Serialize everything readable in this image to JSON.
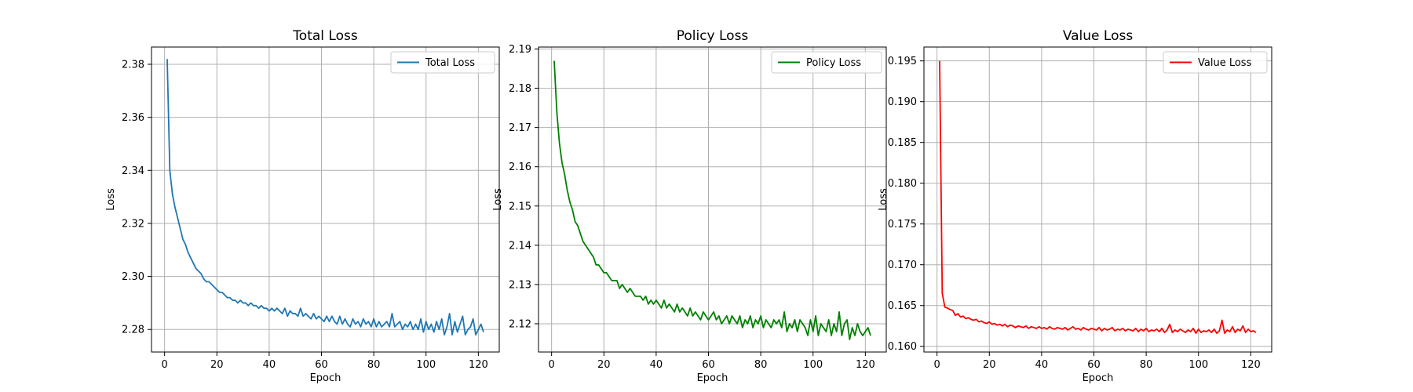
{
  "chart_data": [
    {
      "type": "line",
      "title": "Total Loss",
      "xlabel": "Epoch",
      "ylabel": "Loss",
      "xlim": [
        -5,
        128
      ],
      "ylim": [
        2.2715,
        2.3865
      ],
      "xticks": [
        0,
        20,
        40,
        60,
        80,
        100,
        120
      ],
      "yticks": [
        2.28,
        2.3,
        2.32,
        2.34,
        2.36,
        2.38
      ],
      "ytick_labels": [
        "2.28",
        "2.30",
        "2.32",
        "2.34",
        "2.36",
        "2.38"
      ],
      "grid": true,
      "legend_position": "top-right",
      "color": "#1f77b4",
      "series": [
        {
          "name": "Total Loss",
          "x_start": 1,
          "values": [
            2.382,
            2.34,
            2.331,
            2.326,
            2.322,
            2.318,
            2.314,
            2.312,
            2.309,
            2.307,
            2.305,
            2.303,
            2.302,
            2.301,
            2.299,
            2.298,
            2.298,
            2.297,
            2.296,
            2.295,
            2.294,
            2.294,
            2.293,
            2.292,
            2.292,
            2.291,
            2.291,
            2.29,
            2.291,
            2.29,
            2.29,
            2.289,
            2.29,
            2.289,
            2.289,
            2.288,
            2.289,
            2.288,
            2.288,
            2.287,
            2.288,
            2.287,
            2.288,
            2.287,
            2.286,
            2.288,
            2.285,
            2.287,
            2.286,
            2.286,
            2.285,
            2.288,
            2.285,
            2.286,
            2.285,
            2.284,
            2.286,
            2.284,
            2.285,
            2.284,
            2.283,
            2.285,
            2.283,
            2.285,
            2.283,
            2.282,
            2.285,
            2.282,
            2.284,
            2.282,
            2.281,
            2.284,
            2.282,
            2.283,
            2.281,
            2.284,
            2.282,
            2.283,
            2.281,
            2.284,
            2.281,
            2.283,
            2.281,
            2.282,
            2.283,
            2.281,
            2.286,
            2.281,
            2.282,
            2.283,
            2.28,
            2.282,
            2.281,
            2.283,
            2.28,
            2.282,
            2.28,
            2.284,
            2.279,
            2.283,
            2.28,
            2.282,
            2.279,
            2.283,
            2.28,
            2.284,
            2.278,
            2.281,
            2.286,
            2.278,
            2.283,
            2.279,
            2.282,
            2.285,
            2.278,
            2.28,
            2.281,
            2.284,
            2.278,
            2.28,
            2.282,
            2.279
          ]
        }
      ]
    },
    {
      "type": "line",
      "title": "Policy Loss",
      "xlabel": "Epoch",
      "ylabel": "Loss",
      "xlim": [
        -5,
        128
      ],
      "ylim": [
        2.1128,
        2.1905
      ],
      "xticks": [
        0,
        20,
        40,
        60,
        80,
        100,
        120
      ],
      "yticks": [
        2.12,
        2.13,
        2.14,
        2.15,
        2.16,
        2.17,
        2.18,
        2.19
      ],
      "ytick_labels": [
        "2.12",
        "2.13",
        "2.14",
        "2.15",
        "2.16",
        "2.17",
        "2.18",
        "2.19"
      ],
      "grid": true,
      "legend_position": "top-right",
      "color": "#008000",
      "series": [
        {
          "name": "Policy Loss",
          "x_start": 1,
          "values": [
            2.187,
            2.174,
            2.166,
            2.161,
            2.158,
            2.154,
            2.151,
            2.149,
            2.146,
            2.145,
            2.143,
            2.141,
            2.14,
            2.139,
            2.138,
            2.137,
            2.135,
            2.135,
            2.134,
            2.133,
            2.133,
            2.132,
            2.131,
            2.131,
            2.131,
            2.129,
            2.13,
            2.129,
            2.128,
            2.129,
            2.128,
            2.127,
            2.127,
            2.127,
            2.126,
            2.127,
            2.125,
            2.126,
            2.125,
            2.126,
            2.125,
            2.124,
            2.126,
            2.124,
            2.125,
            2.124,
            2.123,
            2.125,
            2.123,
            2.124,
            2.123,
            2.122,
            2.124,
            2.122,
            2.123,
            2.122,
            2.121,
            2.123,
            2.122,
            2.121,
            2.122,
            2.123,
            2.121,
            2.122,
            2.12,
            2.121,
            2.122,
            2.12,
            2.122,
            2.121,
            2.12,
            2.122,
            2.119,
            2.121,
            2.12,
            2.122,
            2.119,
            2.121,
            2.12,
            2.122,
            2.119,
            2.121,
            2.12,
            2.119,
            2.121,
            2.12,
            2.121,
            2.119,
            2.123,
            2.118,
            2.12,
            2.119,
            2.121,
            2.118,
            2.121,
            2.12,
            2.119,
            2.117,
            2.121,
            2.118,
            2.122,
            2.117,
            2.12,
            2.119,
            2.118,
            2.121,
            2.117,
            2.12,
            2.118,
            2.123,
            2.117,
            2.12,
            2.121,
            2.116,
            2.119,
            2.117,
            2.12,
            2.118,
            2.117,
            2.118,
            2.119,
            2.117
          ]
        }
      ]
    },
    {
      "type": "line",
      "title": "Value Loss",
      "xlabel": "Epoch",
      "ylabel": "Loss",
      "xlim": [
        -5,
        128
      ],
      "ylim": [
        0.1593,
        0.1967
      ],
      "xticks": [
        0,
        20,
        40,
        60,
        80,
        100,
        120
      ],
      "yticks": [
        0.16,
        0.165,
        0.17,
        0.175,
        0.18,
        0.185,
        0.19,
        0.195
      ],
      "ytick_labels": [
        "0.160",
        "0.165",
        "0.170",
        "0.175",
        "0.180",
        "0.185",
        "0.190",
        "0.195"
      ],
      "grid": true,
      "legend_position": "top-right",
      "color": "#ff0000",
      "series": [
        {
          "name": "Value Loss",
          "x_start": 1,
          "values": [
            0.195,
            0.1665,
            0.1648,
            0.1647,
            0.1645,
            0.1644,
            0.1638,
            0.164,
            0.1636,
            0.1637,
            0.1634,
            0.1635,
            0.1633,
            0.1632,
            0.1633,
            0.163,
            0.1631,
            0.1629,
            0.1628,
            0.163,
            0.1627,
            0.1628,
            0.1626,
            0.1627,
            0.1625,
            0.1627,
            0.1624,
            0.1626,
            0.1625,
            0.1623,
            0.1625,
            0.1624,
            0.1623,
            0.1625,
            0.1622,
            0.1624,
            0.1623,
            0.1622,
            0.1624,
            0.1622,
            0.1623,
            0.1621,
            0.1624,
            0.1622,
            0.1621,
            0.1623,
            0.1622,
            0.1621,
            0.1623,
            0.162,
            0.1622,
            0.1624,
            0.1621,
            0.1622,
            0.162,
            0.1623,
            0.1621,
            0.162,
            0.1622,
            0.1621,
            0.162,
            0.1623,
            0.1619,
            0.1622,
            0.162,
            0.1621,
            0.1623,
            0.1619,
            0.1621,
            0.162,
            0.1622,
            0.1619,
            0.1621,
            0.162,
            0.1619,
            0.1622,
            0.1618,
            0.1621,
            0.1619,
            0.1622,
            0.1618,
            0.162,
            0.1619,
            0.1621,
            0.1618,
            0.1622,
            0.1617,
            0.162,
            0.1627,
            0.1617,
            0.162,
            0.1618,
            0.1621,
            0.1619,
            0.1617,
            0.162,
            0.1618,
            0.1622,
            0.1616,
            0.1621,
            0.1617,
            0.1619,
            0.1618,
            0.162,
            0.1617,
            0.1621,
            0.1616,
            0.1619,
            0.1632,
            0.1616,
            0.162,
            0.1618,
            0.1624,
            0.1617,
            0.1621,
            0.1619,
            0.1625,
            0.1617,
            0.1621,
            0.1618,
            0.1619,
            0.1617
          ]
        }
      ]
    }
  ]
}
